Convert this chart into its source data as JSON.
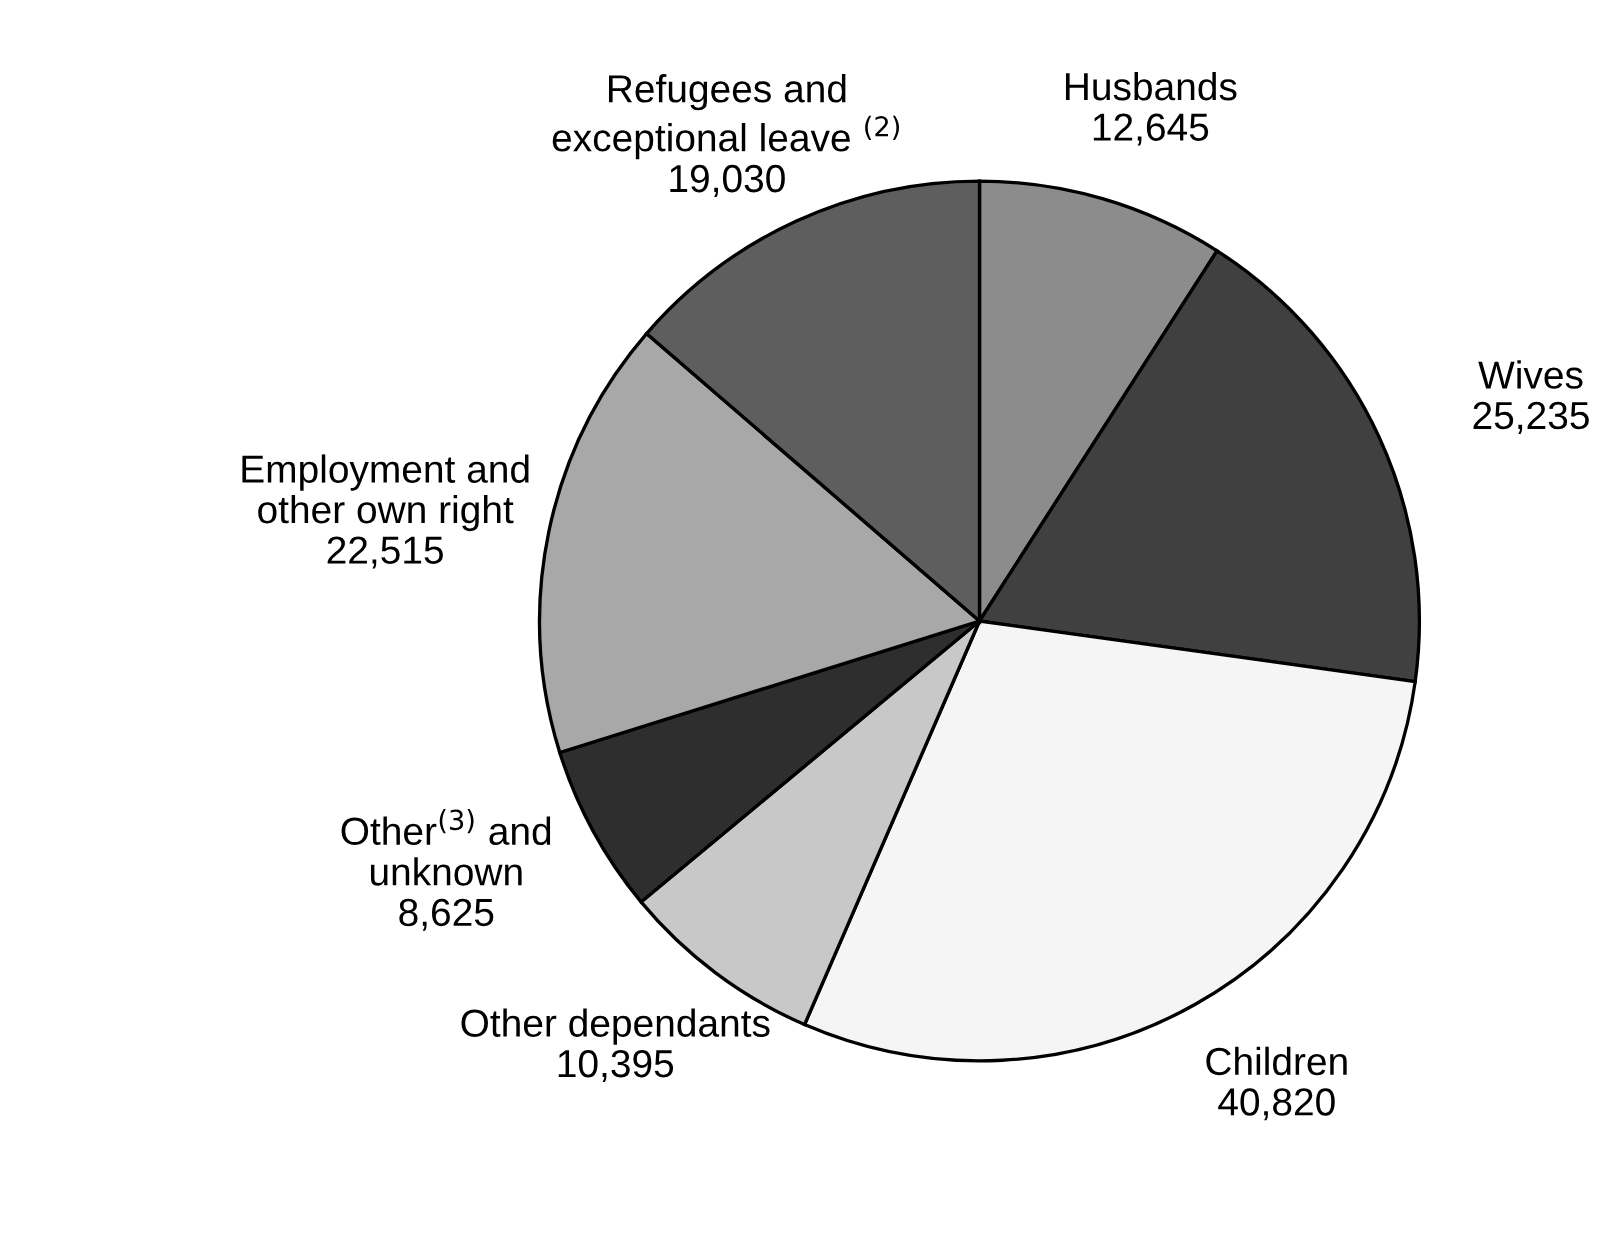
{
  "chart_data": {
    "type": "pie",
    "categories": [
      "Husbands",
      "Wives",
      "Children",
      "Other dependants",
      "Other$^{(3)}$ and\nunknown",
      "Employment and\nother own right",
      "Refugees and\nexceptional leave $^{(2)}$"
    ],
    "values": [
      12645,
      25235,
      40820,
      10395,
      8625,
      22515,
      19030
    ],
    "value_labels": [
      "12,645",
      "25,235",
      "40,820",
      "10,395",
      "8,625",
      "22,515",
      "19,030"
    ],
    "colors": [
      "#8c8c8c",
      "#404040",
      "#f5f5f5",
      "#c8c8c8",
      "#2e2e2e",
      "#a8a8a8",
      "#5e5e5e"
    ],
    "legend": false
  }
}
